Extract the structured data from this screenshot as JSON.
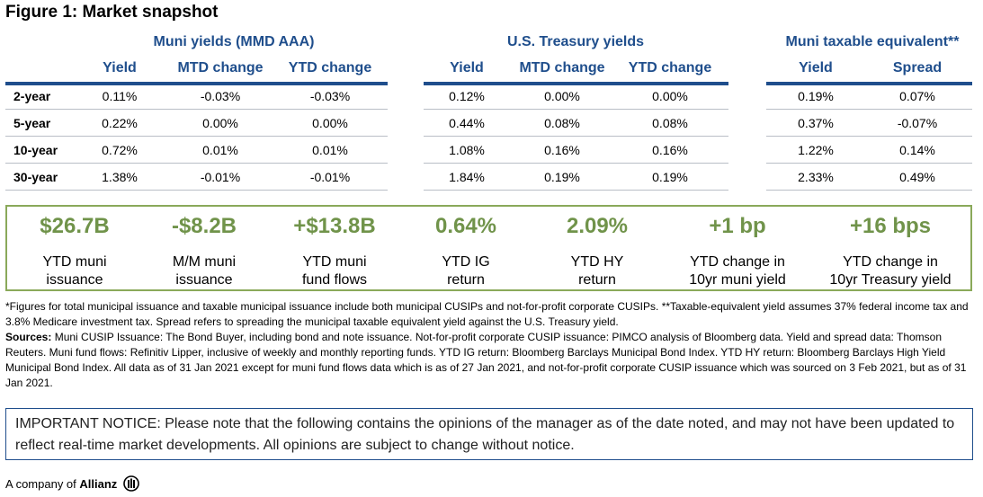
{
  "title": "Figure 1: Market snapshot",
  "groups": {
    "muni": "Muni yields (MMD AAA)",
    "treasury": "U.S. Treasury yields",
    "taxable": "Muni taxable equivalent**"
  },
  "columns": {
    "muni": [
      "Yield",
      "MTD change",
      "YTD change"
    ],
    "treasury": [
      "Yield",
      "MTD change",
      "YTD change"
    ],
    "taxable": [
      "Yield",
      "Spread"
    ]
  },
  "rows": [
    {
      "label": "2-year",
      "muni": [
        "0.11%",
        "-0.03%",
        "-0.03%"
      ],
      "treasury": [
        "0.12%",
        "0.00%",
        "0.00%"
      ],
      "taxable": [
        "0.19%",
        "0.07%"
      ]
    },
    {
      "label": "5-year",
      "muni": [
        "0.22%",
        "0.00%",
        "0.00%"
      ],
      "treasury": [
        "0.44%",
        "0.08%",
        "0.08%"
      ],
      "taxable": [
        "0.37%",
        "-0.07%"
      ]
    },
    {
      "label": "10-year",
      "muni": [
        "0.72%",
        "0.01%",
        "0.01%"
      ],
      "treasury": [
        "1.08%",
        "0.16%",
        "0.16%"
      ],
      "taxable": [
        "1.22%",
        "0.14%"
      ]
    },
    {
      "label": "30-year",
      "muni": [
        "1.38%",
        "-0.01%",
        "-0.01%"
      ],
      "treasury": [
        "1.84%",
        "0.19%",
        "0.19%"
      ],
      "taxable": [
        "2.33%",
        "0.49%"
      ]
    }
  ],
  "stats": [
    {
      "value": "$26.7B",
      "label": "YTD muni\nissuance"
    },
    {
      "value": "-$8.2B",
      "label": "M/M muni\nissuance"
    },
    {
      "value": "+$13.8B",
      "label": "YTD muni\nfund flows"
    },
    {
      "value": "0.64%",
      "label": "YTD IG\nreturn"
    },
    {
      "value": "2.09%",
      "label": "YTD HY\nreturn"
    },
    {
      "value": "+1 bp",
      "label": "YTD change in\n10yr muni yield"
    },
    {
      "value": "+16 bps",
      "label": "YTD change in\n10yr Treasury yield"
    }
  ],
  "notes": {
    "footnote": "*Figures for total municipal issuance and taxable municipal issuance include both municipal CUSIPs and not-for-profit corporate CUSIPs. **Taxable-equivalent yield assumes 37% federal income tax and 3.8% Medicare investment tax. Spread refers to spreading the municipal taxable equivalent yield against the U.S. Treasury yield.",
    "sources_label": "Sources:",
    "sources_text": " Muni CUSIP Issuance: The Bond Buyer, including bond and note issuance. Not-for-profit corporate CUSIP issuance: PIMCO analysis of Bloomberg data. Yield and spread data: Thomson Reuters. Muni fund flows: Refinitiv Lipper, inclusive of weekly and monthly reporting funds. YTD IG return: Bloomberg Barclays Municipal Bond Index. YTD HY return: Bloomberg Barclays High Yield Municipal Bond Index. All data as of 31 Jan 2021 except for muni fund flows data which is as of 27 Jan 2021, and not-for-profit corporate CUSIP issuance which was sourced on 3 Feb 2021, but as of 31 Jan 2021."
  },
  "notice": "IMPORTANT NOTICE: Please note that the following contains the opinions of the manager as of the date noted, and may not have been updated to reflect real-time market developments. All opinions are subject to change without notice.",
  "footer": {
    "prefix": "A company of",
    "brand": "Allianz"
  },
  "colors": {
    "navy": "#1f4e8c",
    "green": "#70934a",
    "box_border": "#8aa95a"
  }
}
